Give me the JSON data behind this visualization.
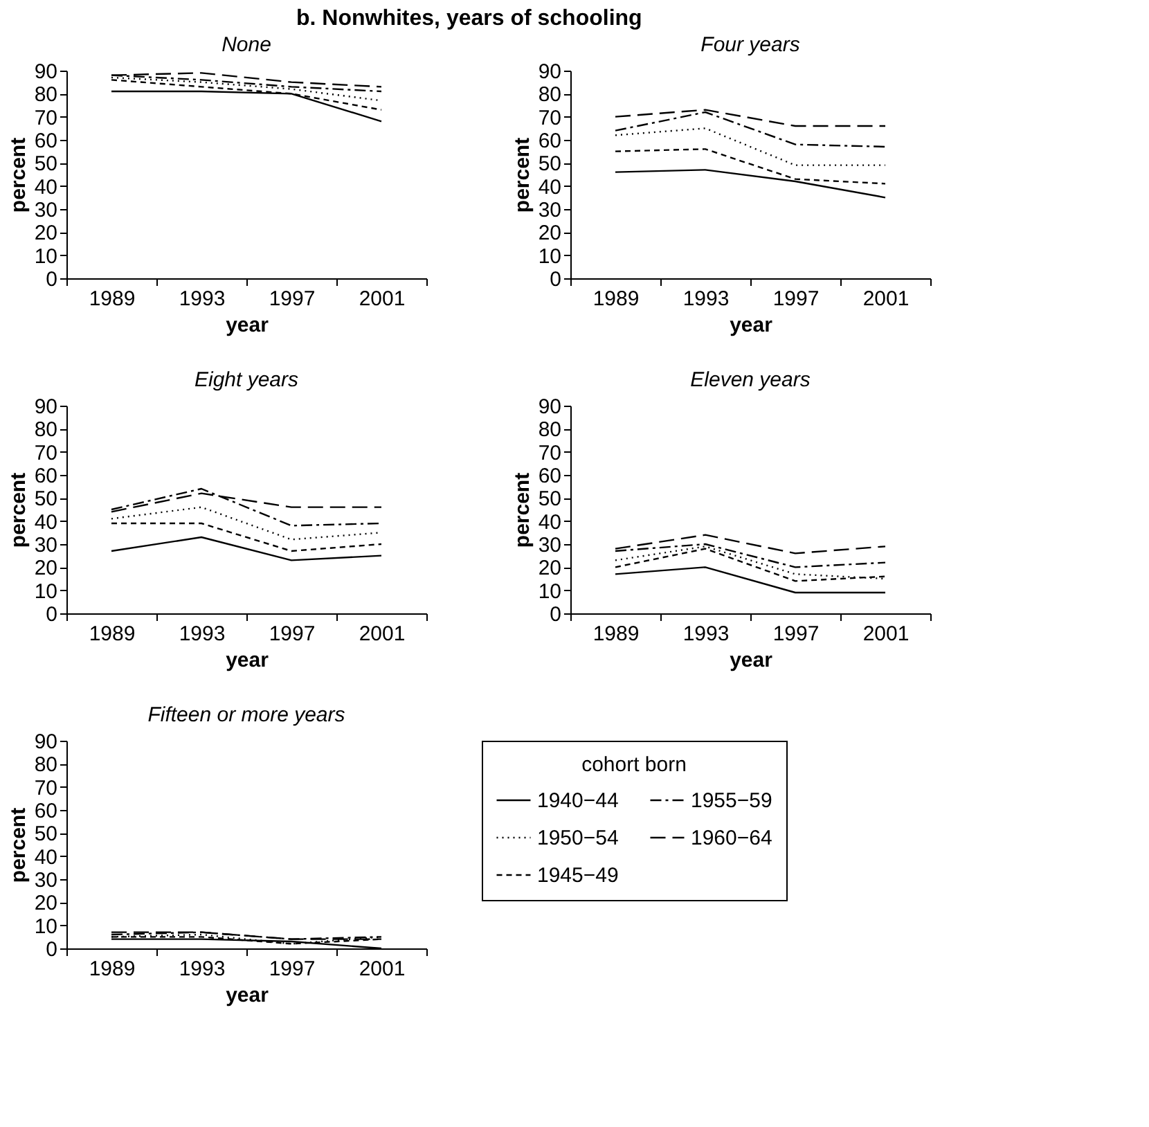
{
  "chart_data": [
    {
      "type": "line",
      "title": "b. Nonwhites, years of schooling",
      "subtitle": "None",
      "xlabel": "year",
      "ylabel": "percent",
      "categories": [
        "1989",
        "1993",
        "1997",
        "2001"
      ],
      "ylim": [
        0,
        90
      ],
      "yticks": [
        0,
        10,
        20,
        30,
        40,
        50,
        60,
        70,
        80,
        90
      ],
      "grid": false,
      "legend": false,
      "marker": "none",
      "series": [
        {
          "color": "#000000",
          "line_style": "solid",
          "values": [
            81,
            81,
            80,
            68
          ]
        },
        {
          "color": "#000000",
          "line_style": "dashed",
          "values": [
            86,
            83,
            80,
            73
          ]
        },
        {
          "color": "#000000",
          "line_style": "dotted",
          "values": [
            87,
            85,
            82,
            77
          ]
        },
        {
          "color": "#000000",
          "line_style": "dashdot",
          "values": [
            88,
            86,
            83,
            81
          ]
        },
        {
          "color": "#000000",
          "line_style": "longdash",
          "values": [
            88,
            89,
            85,
            83
          ]
        }
      ]
    },
    {
      "type": "line",
      "subtitle": "Four years",
      "xlabel": "year",
      "ylabel": "percent",
      "categories": [
        "1989",
        "1993",
        "1997",
        "2001"
      ],
      "ylim": [
        0,
        90
      ],
      "yticks": [
        0,
        10,
        20,
        30,
        40,
        50,
        60,
        70,
        80,
        90
      ],
      "grid": false,
      "legend": false,
      "marker": "none",
      "series": [
        {
          "color": "#000000",
          "line_style": "solid",
          "values": [
            46,
            47,
            42,
            35
          ]
        },
        {
          "color": "#000000",
          "line_style": "dashed",
          "values": [
            55,
            56,
            43,
            41
          ]
        },
        {
          "color": "#000000",
          "line_style": "dotted",
          "values": [
            62,
            65,
            49,
            49
          ]
        },
        {
          "color": "#000000",
          "line_style": "dashdot",
          "values": [
            64,
            72,
            58,
            57
          ]
        },
        {
          "color": "#000000",
          "line_style": "longdash",
          "values": [
            70,
            73,
            66,
            66
          ]
        }
      ]
    },
    {
      "type": "line",
      "subtitle": "Eight years",
      "xlabel": "year",
      "ylabel": "percent",
      "categories": [
        "1989",
        "1993",
        "1997",
        "2001"
      ],
      "ylim": [
        0,
        90
      ],
      "yticks": [
        0,
        10,
        20,
        30,
        40,
        50,
        60,
        70,
        80,
        90
      ],
      "grid": false,
      "legend": false,
      "marker": "none",
      "series": [
        {
          "color": "#000000",
          "line_style": "solid",
          "values": [
            27,
            33,
            23,
            25
          ]
        },
        {
          "color": "#000000",
          "line_style": "dashed",
          "values": [
            39,
            39,
            27,
            30
          ]
        },
        {
          "color": "#000000",
          "line_style": "dotted",
          "values": [
            41,
            46,
            32,
            35
          ]
        },
        {
          "color": "#000000",
          "line_style": "dashdot",
          "values": [
            45,
            54,
            38,
            39
          ]
        },
        {
          "color": "#000000",
          "line_style": "longdash",
          "values": [
            44,
            52,
            46,
            46
          ]
        }
      ]
    },
    {
      "type": "line",
      "subtitle": "Eleven years",
      "xlabel": "year",
      "ylabel": "percent",
      "categories": [
        "1989",
        "1993",
        "1997",
        "2001"
      ],
      "ylim": [
        0,
        90
      ],
      "yticks": [
        0,
        10,
        20,
        30,
        40,
        50,
        60,
        70,
        80,
        90
      ],
      "grid": false,
      "legend": false,
      "marker": "none",
      "series": [
        {
          "color": "#000000",
          "line_style": "solid",
          "values": [
            17,
            20,
            9,
            9
          ]
        },
        {
          "color": "#000000",
          "line_style": "dashed",
          "values": [
            20,
            28,
            14,
            16
          ]
        },
        {
          "color": "#000000",
          "line_style": "dotted",
          "values": [
            23,
            29,
            17,
            15
          ]
        },
        {
          "color": "#000000",
          "line_style": "dashdot",
          "values": [
            27,
            30,
            20,
            22
          ]
        },
        {
          "color": "#000000",
          "line_style": "longdash",
          "values": [
            28,
            34,
            26,
            29
          ]
        }
      ]
    },
    {
      "type": "line",
      "subtitle": "Fifteen or more years",
      "xlabel": "year",
      "ylabel": "percent",
      "legend_title": "cohort born",
      "categories": [
        "1989",
        "1993",
        "1997",
        "2001"
      ],
      "ylim": [
        0,
        90
      ],
      "yticks": [
        0,
        10,
        20,
        30,
        40,
        50,
        60,
        70,
        80,
        90
      ],
      "grid": false,
      "legend": "right",
      "marker": "none",
      "series": [
        {
          "name": "1940−44",
          "color": "#000000",
          "line_style": "solid",
          "values": [
            4,
            4,
            3,
            0
          ]
        },
        {
          "name": "1945−49",
          "color": "#000000",
          "line_style": "dashed",
          "values": [
            5,
            5,
            2,
            4
          ]
        },
        {
          "name": "1950−54",
          "color": "#000000",
          "line_style": "dotted",
          "values": [
            5,
            6,
            2,
            5
          ]
        },
        {
          "name": "1955−59",
          "color": "#000000",
          "line_style": "dashdot",
          "values": [
            6,
            7,
            4,
            5
          ]
        },
        {
          "name": "1960−64",
          "color": "#000000",
          "line_style": "longdash",
          "values": [
            7,
            7,
            4,
            4
          ]
        }
      ]
    }
  ]
}
